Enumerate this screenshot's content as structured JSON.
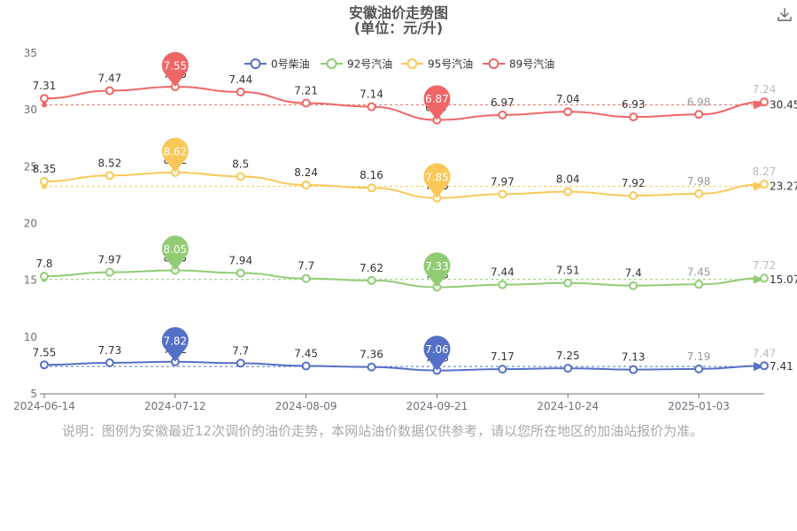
{
  "title": "安徽油价走势图",
  "subtitle": "(单位：元/升)",
  "note": "说明：图例为安徽最近12次调价的油价走势，本网站油价数据仅供参考，请以您所在地区的加油站报价为准。",
  "icons": {
    "download": "download-icon"
  },
  "chart_data": {
    "type": "line",
    "title": "安徽油价走势图",
    "subtitle": "(单位：元/升)",
    "x_ticks": [
      "2024-06-14",
      "2024-07-12",
      "2024-08-09",
      "2024-09-21",
      "2024-10-24",
      "2025-01-03"
    ],
    "y_ticks": [
      5,
      10,
      15,
      20,
      25,
      30,
      35
    ],
    "ylim": [
      5,
      35
    ],
    "grid": false,
    "legend_position": "top",
    "max_index": 2,
    "min_index": 6,
    "series": [
      {
        "name": "0号柴油",
        "color": "#5470c6",
        "values": [
          7.55,
          7.73,
          7.82,
          7.7,
          7.45,
          7.36,
          7.06,
          7.17,
          7.25,
          7.13,
          7.19,
          7.47
        ],
        "max_label": "7.82",
        "min_label": "7.06",
        "avg_label": "7.41"
      },
      {
        "name": "92号汽油",
        "color": "#91cc75",
        "values": [
          7.8,
          7.97,
          8.05,
          7.94,
          7.7,
          7.62,
          7.33,
          7.44,
          7.51,
          7.4,
          7.45,
          7.72
        ],
        "max_label": "8.05",
        "min_label": "7.33",
        "avg_label": "15.07"
      },
      {
        "name": "95号汽油",
        "color": "#fac858",
        "values": [
          8.35,
          8.52,
          8.62,
          8.5,
          8.24,
          8.16,
          7.85,
          7.97,
          8.04,
          7.92,
          7.98,
          8.27
        ],
        "max_label": "8.62",
        "min_label": "7.85",
        "avg_label": "23.27"
      },
      {
        "name": "89号汽油",
        "color": "#ee6666",
        "values": [
          7.31,
          7.47,
          7.55,
          7.44,
          7.21,
          7.14,
          6.87,
          6.97,
          7.04,
          6.93,
          6.98,
          7.24
        ],
        "max_label": "7.55",
        "min_label": "6.87",
        "avg_label": "30.45"
      }
    ]
  }
}
